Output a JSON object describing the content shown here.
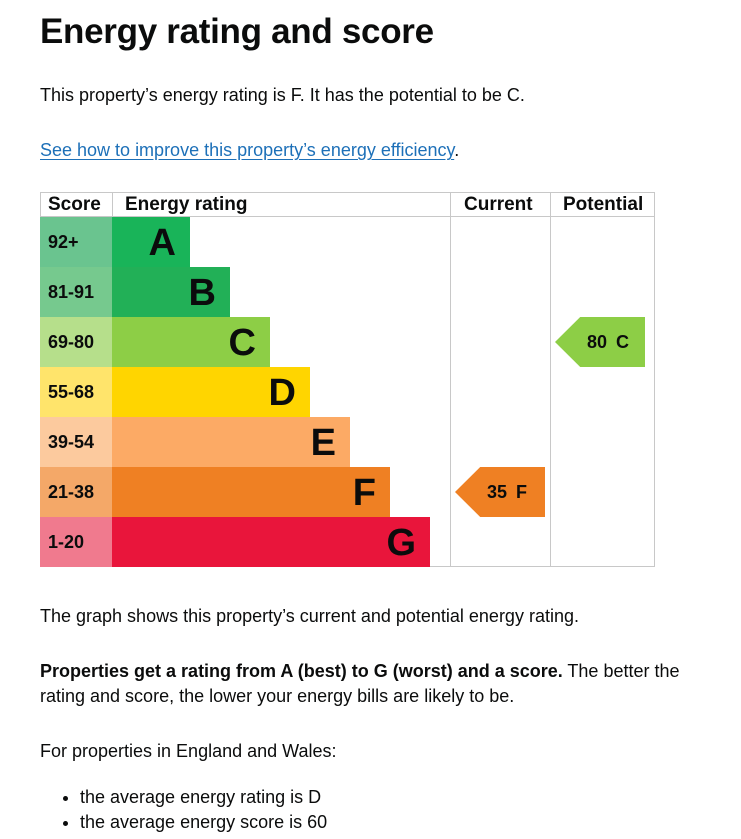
{
  "page": {
    "title": "Energy rating and score",
    "intro": "This property’s energy rating is F. It has the potential to be C.",
    "link_text": "See how to improve this property’s energy efficiency",
    "link_suffix": ".",
    "graph_caption": "The graph shows this property’s current and potential energy rating.",
    "ratings_bold": "Properties get a rating from A (best) to G (worst) and a score.",
    "ratings_rest": " The better the rating and score, the lower your energy bills are likely to be.",
    "region_text": "For properties in England and Wales:",
    "bullets": [
      "the average energy rating is D",
      "the average energy score is 60"
    ]
  },
  "chart_data": {
    "type": "bar",
    "headers": [
      "Score",
      "Energy rating",
      "Current",
      "Potential"
    ],
    "bands": [
      {
        "score": "92+",
        "letter": "A",
        "bar_color": "#19b459",
        "score_color": "#6ac48f"
      },
      {
        "score": "81-91",
        "letter": "B",
        "bar_color": "#22b057",
        "score_color": "#76c98e"
      },
      {
        "score": "69-80",
        "letter": "C",
        "bar_color": "#8dce46",
        "score_color": "#b6df8b"
      },
      {
        "score": "55-68",
        "letter": "D",
        "bar_color": "#ffd500",
        "score_color": "#ffe46b"
      },
      {
        "score": "39-54",
        "letter": "E",
        "bar_color": "#fcaa65",
        "score_color": "#fcca9e"
      },
      {
        "score": "21-38",
        "letter": "F",
        "bar_color": "#ef8023",
        "score_color": "#f4a868"
      },
      {
        "score": "1-20",
        "letter": "G",
        "bar_color": "#e9153b",
        "score_color": "#f07a8e"
      }
    ],
    "current": {
      "value": "35",
      "letter": "F",
      "color": "#ef8023"
    },
    "potential": {
      "value": "80",
      "letter": "C",
      "color": "#8dce46"
    }
  }
}
